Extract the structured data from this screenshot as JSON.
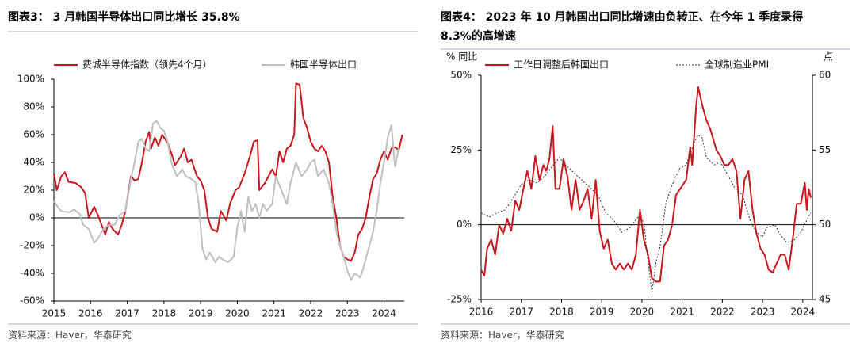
{
  "chart_data": [
    {
      "type": "line",
      "title": "图表3： 3 月韩国半导体出口同比增长 35.8%",
      "source": "资料来源：Haver，华泰研究",
      "xlim": [
        2015,
        2024.55
      ],
      "xticks": [
        2015,
        2016,
        2017,
        2018,
        2019,
        2020,
        2021,
        2022,
        2023,
        2024
      ],
      "ylim": [
        -60,
        100
      ],
      "yticks": [
        {
          "value": -60,
          "label": "-60%"
        },
        {
          "value": -40,
          "label": "-40%"
        },
        {
          "value": -20,
          "label": "-20%"
        },
        {
          "value": 0,
          "label": "0%"
        },
        {
          "value": 20,
          "label": "20%"
        },
        {
          "value": 40,
          "label": "40%"
        },
        {
          "value": 60,
          "label": "60%"
        },
        {
          "value": 80,
          "label": "80%"
        },
        {
          "value": 100,
          "label": "100%"
        }
      ],
      "series": [
        {
          "name": "费城半导体指数（领先4个月）",
          "color": "#c8161d",
          "style": "solid",
          "x": [
            2015.0,
            2015.08,
            2015.2,
            2015.3,
            2015.4,
            2015.6,
            2015.75,
            2015.85,
            2015.95,
            2016.1,
            2016.2,
            2016.3,
            2016.4,
            2016.5,
            2016.6,
            2016.75,
            2016.85,
            2016.95,
            2017.1,
            2017.2,
            2017.3,
            2017.4,
            2017.5,
            2017.6,
            2017.65,
            2017.75,
            2017.85,
            2017.95,
            2018.1,
            2018.2,
            2018.3,
            2018.45,
            2018.55,
            2018.65,
            2018.75,
            2018.9,
            2019.0,
            2019.1,
            2019.2,
            2019.3,
            2019.45,
            2019.55,
            2019.7,
            2019.8,
            2019.95,
            2020.05,
            2020.2,
            2020.35,
            2020.45,
            2020.55,
            2020.6,
            2020.75,
            2020.85,
            2020.95,
            2021.05,
            2021.15,
            2021.25,
            2021.35,
            2021.45,
            2021.55,
            2021.6,
            2021.7,
            2021.8,
            2021.9,
            2022.0,
            2022.1,
            2022.2,
            2022.3,
            2022.4,
            2022.5,
            2022.6,
            2022.7,
            2022.8,
            2022.9,
            2023.0,
            2023.1,
            2023.2,
            2023.3,
            2023.4,
            2023.5,
            2023.6,
            2023.7,
            2023.8,
            2023.9,
            2024.0,
            2024.1,
            2024.2,
            2024.3,
            2024.4,
            2024.5
          ],
          "values": [
            32,
            20,
            30,
            33,
            26,
            25,
            22,
            18,
            0,
            8,
            2,
            -5,
            -12,
            -3,
            -8,
            -12,
            -5,
            5,
            30,
            27,
            28,
            40,
            55,
            62,
            50,
            58,
            52,
            60,
            54,
            47,
            38,
            44,
            50,
            40,
            42,
            30,
            27,
            20,
            0,
            -8,
            -10,
            5,
            -2,
            10,
            20,
            22,
            32,
            45,
            55,
            56,
            20,
            25,
            30,
            35,
            30,
            48,
            40,
            50,
            52,
            60,
            97,
            96,
            72,
            65,
            55,
            50,
            48,
            52,
            48,
            40,
            15,
            0,
            -20,
            -28,
            -30,
            -31,
            -25,
            -12,
            -8,
            0,
            15,
            28,
            32,
            42,
            48,
            42,
            50,
            51,
            49,
            60
          ]
        },
        {
          "name": "韩国半导体出口",
          "color": "#bfbfbf",
          "style": "solid",
          "x": [
            2015.0,
            2015.1,
            2015.2,
            2015.4,
            2015.55,
            2015.7,
            2015.8,
            2015.95,
            2016.1,
            2016.2,
            2016.35,
            2016.5,
            2016.65,
            2016.8,
            2016.95,
            2017.1,
            2017.2,
            2017.3,
            2017.4,
            2017.5,
            2017.6,
            2017.7,
            2017.8,
            2017.9,
            2018.0,
            2018.1,
            2018.2,
            2018.35,
            2018.5,
            2018.6,
            2018.75,
            2018.85,
            2018.95,
            2019.05,
            2019.15,
            2019.25,
            2019.4,
            2019.5,
            2019.6,
            2019.75,
            2019.9,
            2020.0,
            2020.1,
            2020.2,
            2020.3,
            2020.4,
            2020.5,
            2020.6,
            2020.7,
            2020.8,
            2020.95,
            2021.05,
            2021.2,
            2021.35,
            2021.45,
            2021.6,
            2021.75,
            2021.9,
            2022.0,
            2022.1,
            2022.2,
            2022.35,
            2022.5,
            2022.6,
            2022.7,
            2022.8,
            2022.9,
            2023.0,
            2023.1,
            2023.2,
            2023.35,
            2023.45,
            2023.55,
            2023.7,
            2023.8,
            2023.9,
            2024.0,
            2024.1,
            2024.2,
            2024.3,
            2024.4
          ],
          "values": [
            12,
            8,
            5,
            4,
            6,
            3,
            -5,
            -8,
            -18,
            -15,
            -8,
            -5,
            -5,
            2,
            5,
            28,
            40,
            55,
            57,
            50,
            48,
            68,
            70,
            65,
            63,
            55,
            40,
            30,
            35,
            30,
            28,
            26,
            10,
            -22,
            -30,
            -25,
            -32,
            -28,
            -30,
            -32,
            -28,
            -7,
            5,
            -10,
            15,
            5,
            10,
            0,
            10,
            5,
            10,
            30,
            20,
            10,
            25,
            40,
            30,
            35,
            40,
            42,
            30,
            35,
            25,
            10,
            -10,
            -20,
            -28,
            -38,
            -45,
            -40,
            -43,
            -35,
            -25,
            -10,
            5,
            25,
            40,
            58,
            67,
            37,
            50
          ]
        }
      ]
    },
    {
      "type": "line",
      "title": "图表4： 2023 年 10 月韩国出口同比增速由负转正、在今年 1 季度录得 8.3%的高增速",
      "source": "资料来源：Haver，华泰研究",
      "ylabel": "% 同比",
      "y2label": "点",
      "xlim": [
        2016,
        2024.24
      ],
      "xticks": [
        2016,
        2017,
        2018,
        2019,
        2020,
        2021,
        2022,
        2023,
        2024
      ],
      "ylim": [
        -25,
        50
      ],
      "yticks": [
        {
          "value": -25,
          "label": "-25%"
        },
        {
          "value": 0,
          "label": "0%"
        },
        {
          "value": 25,
          "label": "25%"
        },
        {
          "value": 50,
          "label": "50%"
        }
      ],
      "y2lim": [
        45,
        60
      ],
      "y2ticks": [
        45,
        50,
        55,
        60
      ],
      "series": [
        {
          "name": "工作日调整后韩国出口",
          "color": "#c8161d",
          "style": "solid",
          "x": [
            2016.0,
            2016.08,
            2016.15,
            2016.25,
            2016.35,
            2016.45,
            2016.55,
            2016.65,
            2016.75,
            2016.85,
            2016.95,
            2017.05,
            2017.15,
            2017.25,
            2017.35,
            2017.45,
            2017.55,
            2017.62,
            2017.7,
            2017.78,
            2017.85,
            2017.95,
            2018.05,
            2018.15,
            2018.25,
            2018.35,
            2018.45,
            2018.55,
            2018.65,
            2018.75,
            2018.85,
            2018.95,
            2019.05,
            2019.15,
            2019.25,
            2019.35,
            2019.45,
            2019.55,
            2019.65,
            2019.75,
            2019.85,
            2019.95,
            2020.05,
            2020.15,
            2020.25,
            2020.35,
            2020.45,
            2020.55,
            2020.65,
            2020.75,
            2020.85,
            2020.95,
            2021.1,
            2021.2,
            2021.25,
            2021.35,
            2021.4,
            2021.5,
            2021.6,
            2021.7,
            2021.85,
            2021.95,
            2022.05,
            2022.15,
            2022.25,
            2022.35,
            2022.45,
            2022.55,
            2022.65,
            2022.75,
            2022.85,
            2022.95,
            2023.05,
            2023.15,
            2023.25,
            2023.35,
            2023.45,
            2023.55,
            2023.65,
            2023.75,
            2023.85,
            2023.95,
            2024.05,
            2024.1,
            2024.15,
            2024.2
          ],
          "values": [
            -15,
            -17,
            -8,
            -5,
            -10,
            0,
            -3,
            2,
            -2,
            8,
            5,
            12,
            18,
            12,
            23,
            15,
            20,
            18,
            22,
            33,
            12,
            12,
            22,
            16,
            5,
            15,
            5,
            8,
            12,
            2,
            15,
            -2,
            -8,
            -5,
            -13,
            -15,
            -13,
            -15,
            -13,
            -15,
            -10,
            5,
            -5,
            -10,
            -18,
            -19,
            -19,
            -7,
            -5,
            0,
            10,
            12,
            15,
            26,
            20,
            40,
            46,
            40,
            35,
            32,
            25,
            23,
            20,
            20,
            22,
            18,
            2,
            15,
            18,
            5,
            -3,
            -8,
            -10,
            -15,
            -16,
            -13,
            -10,
            -10,
            -15,
            -5,
            7,
            7,
            14,
            5,
            12,
            9
          ]
        },
        {
          "name": "全球制造业PMI",
          "color": "#333333",
          "style": "dotted",
          "axis": "y2",
          "x": [
            2016.0,
            2016.2,
            2016.4,
            2016.6,
            2016.8,
            2017.0,
            2017.2,
            2017.4,
            2017.6,
            2017.8,
            2017.95,
            2018.1,
            2018.3,
            2018.5,
            2018.7,
            2018.9,
            2019.1,
            2019.3,
            2019.5,
            2019.7,
            2019.9,
            2020.05,
            2020.15,
            2020.25,
            2020.35,
            2020.45,
            2020.6,
            2020.8,
            2020.95,
            2021.1,
            2021.3,
            2021.4,
            2021.5,
            2021.6,
            2021.8,
            2021.95,
            2022.1,
            2022.3,
            2022.5,
            2022.7,
            2022.85,
            2023.0,
            2023.1,
            2023.3,
            2023.45,
            2023.6,
            2023.8,
            2023.95,
            2024.1,
            2024.2
          ],
          "values": [
            50.8,
            50.5,
            50.8,
            51.0,
            51.8,
            52.7,
            53.0,
            52.8,
            53.3,
            54.0,
            54.5,
            54.0,
            53.5,
            53.0,
            52.5,
            52.0,
            50.8,
            50.3,
            49.5,
            49.8,
            50.5,
            50.2,
            47.5,
            45.5,
            47.5,
            48.5,
            51.5,
            53.0,
            53.8,
            54.0,
            55.5,
            56.0,
            55.8,
            54.5,
            54.0,
            54.2,
            53.5,
            52.5,
            52.0,
            50.2,
            49.5,
            49.2,
            49.8,
            50.0,
            49.3,
            48.8,
            49.0,
            49.5,
            50.3,
            50.8
          ]
        }
      ]
    }
  ]
}
